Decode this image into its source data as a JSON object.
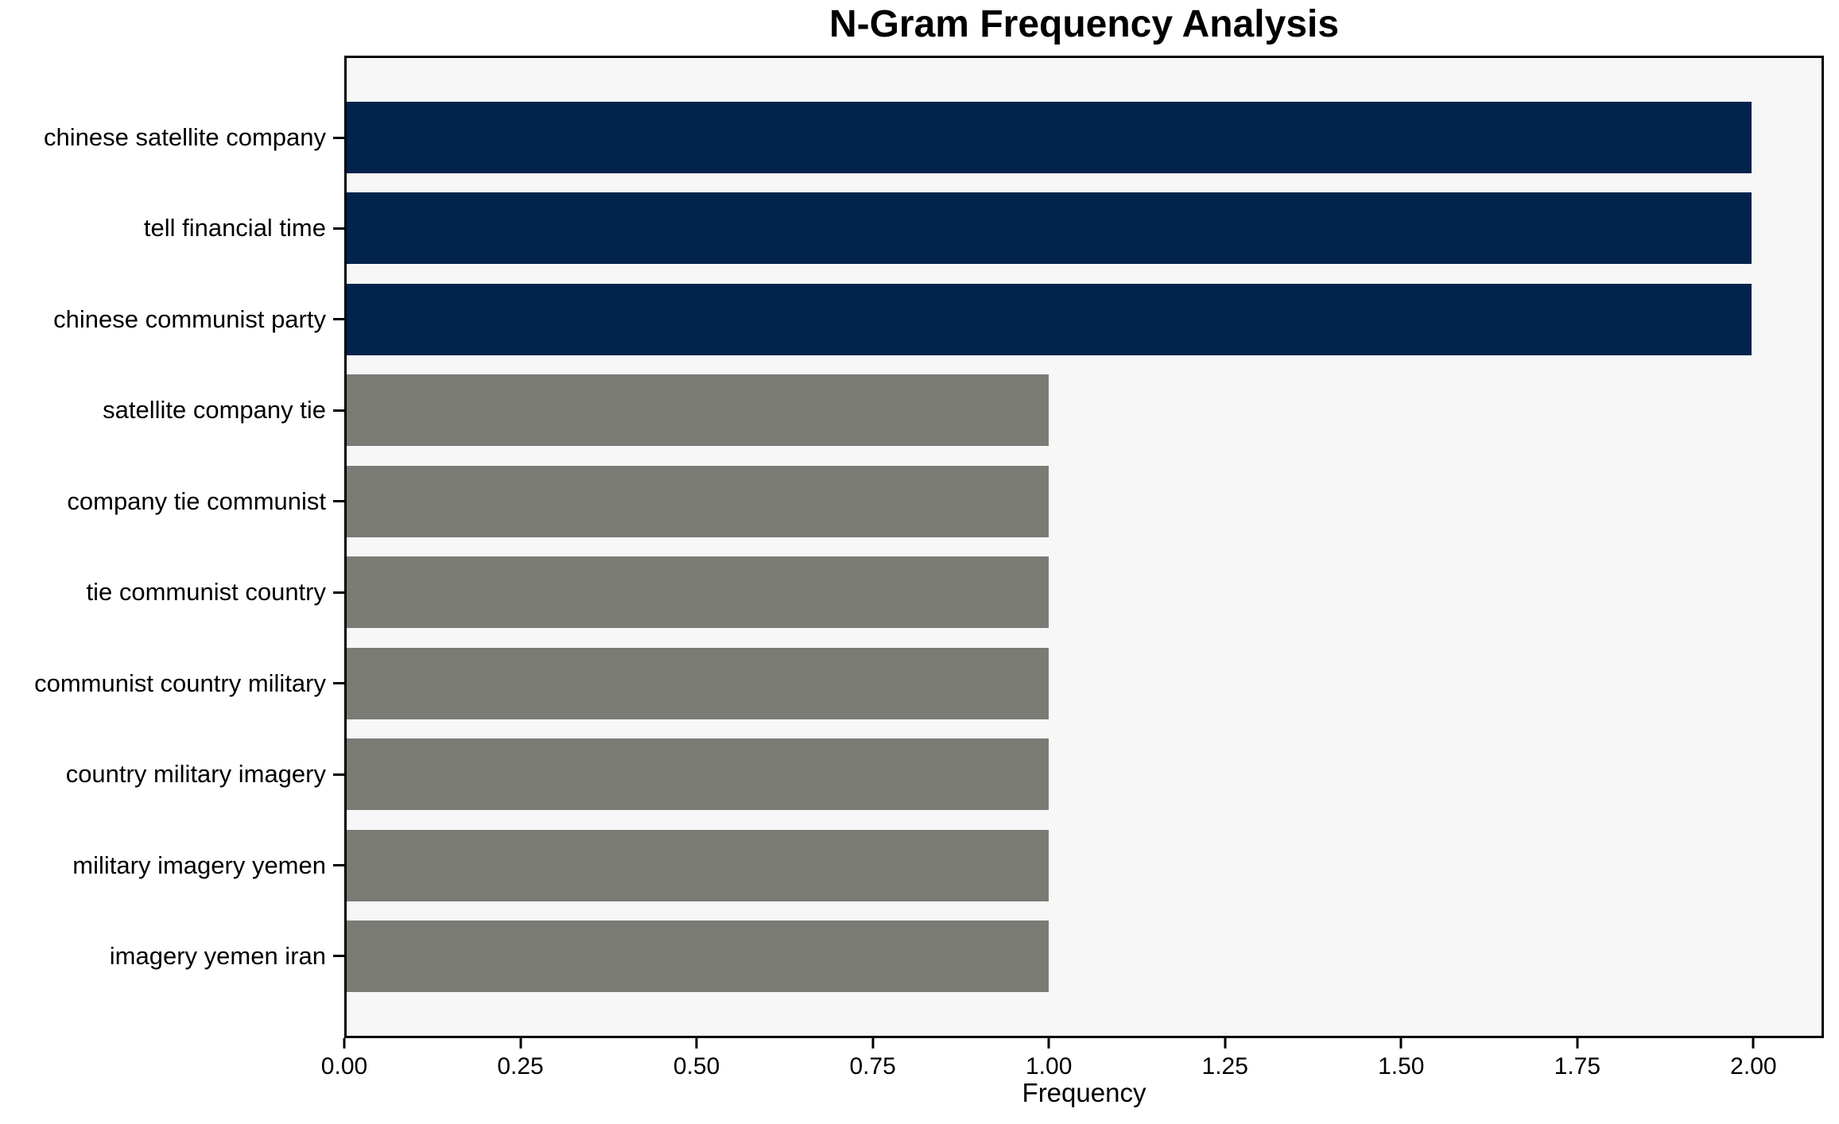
{
  "chart_data": {
    "type": "bar",
    "orientation": "horizontal",
    "title": "N-Gram Frequency Analysis",
    "xlabel": "Frequency",
    "ylabel": "",
    "categories": [
      "chinese satellite company",
      "tell financial time",
      "chinese communist party",
      "satellite company tie",
      "company tie communist",
      "tie communist country",
      "communist country military",
      "country military imagery",
      "military imagery yemen",
      "imagery yemen iran"
    ],
    "values": [
      2,
      2,
      2,
      1,
      1,
      1,
      1,
      1,
      1,
      1
    ],
    "bar_colors": [
      "#02234C",
      "#02234C",
      "#02234C",
      "#7B7B76",
      "#7B7B76",
      "#7B7B76",
      "#7B7B76",
      "#7B7B76",
      "#7B7B76",
      "#7B7B76"
    ],
    "xlim": [
      0,
      2.1
    ],
    "xtick_values": [
      0,
      0.25,
      0.5,
      0.75,
      1.0,
      1.25,
      1.5,
      1.75,
      2.0
    ],
    "xtick_labels": [
      "0.00",
      "0.25",
      "0.50",
      "0.75",
      "1.00",
      "1.25",
      "1.50",
      "1.75",
      "2.00"
    ],
    "grid": false,
    "legend_position": "none",
    "colors": {
      "highlight_bar": "#02234C",
      "default_bar": "#7B7B76",
      "plot_background": "#F7F7F7",
      "figure_background": "#FFFFFF",
      "spine": "#000000",
      "text": "#000000"
    }
  }
}
